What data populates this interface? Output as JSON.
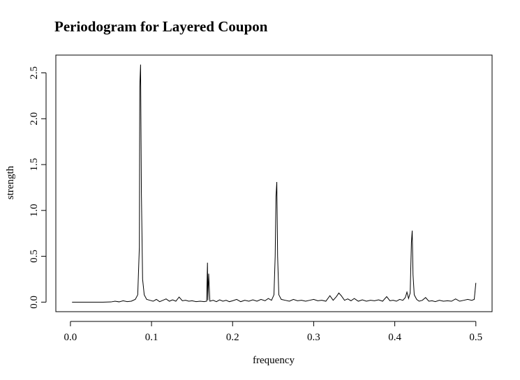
{
  "chart_data": {
    "type": "line",
    "title": "Periodogram for Layered Coupon",
    "x_label": "frequency",
    "y_label": "strength",
    "x": [
      0.002,
      0.01,
      0.02,
      0.03,
      0.04,
      0.05,
      0.055,
      0.06,
      0.065,
      0.07,
      0.075,
      0.08,
      0.083,
      0.085,
      0.0855,
      0.0865,
      0.0875,
      0.089,
      0.091,
      0.094,
      0.098,
      0.102,
      0.106,
      0.11,
      0.114,
      0.118,
      0.122,
      0.126,
      0.13,
      0.134,
      0.138,
      0.142,
      0.146,
      0.15,
      0.155,
      0.16,
      0.165,
      0.168,
      0.169,
      0.1695,
      0.1705,
      0.172,
      0.176,
      0.18,
      0.184,
      0.188,
      0.192,
      0.196,
      0.2,
      0.205,
      0.21,
      0.215,
      0.22,
      0.225,
      0.23,
      0.235,
      0.24,
      0.244,
      0.248,
      0.251,
      0.2525,
      0.2535,
      0.2545,
      0.2555,
      0.257,
      0.26,
      0.265,
      0.27,
      0.275,
      0.28,
      0.285,
      0.29,
      0.295,
      0.3,
      0.305,
      0.31,
      0.315,
      0.32,
      0.324,
      0.328,
      0.331,
      0.334,
      0.338,
      0.342,
      0.346,
      0.35,
      0.355,
      0.36,
      0.365,
      0.37,
      0.375,
      0.38,
      0.385,
      0.39,
      0.394,
      0.398,
      0.402,
      0.406,
      0.41,
      0.413,
      0.415,
      0.417,
      0.419,
      0.4205,
      0.4215,
      0.4225,
      0.424,
      0.427,
      0.43,
      0.434,
      0.438,
      0.442,
      0.446,
      0.45,
      0.455,
      0.46,
      0.465,
      0.47,
      0.475,
      0.48,
      0.485,
      0.49,
      0.495,
      0.498,
      0.5
    ],
    "series": [
      {
        "color": "#000000",
        "values": [
          0,
          0,
          0,
          0,
          0,
          0.002,
          0.01,
          0.003,
          0.015,
          0.005,
          0.01,
          0.03,
          0.08,
          0.6,
          2.35,
          2.59,
          1.2,
          0.25,
          0.08,
          0.03,
          0.02,
          0.01,
          0.03,
          0.005,
          0.02,
          0.035,
          0.01,
          0.025,
          0.01,
          0.055,
          0.015,
          0.02,
          0.01,
          0.015,
          0.005,
          0.01,
          0.005,
          0.01,
          0.43,
          0.02,
          0.31,
          0.01,
          0.02,
          0.005,
          0.025,
          0.01,
          0.02,
          0.005,
          0.015,
          0.03,
          0.005,
          0.02,
          0.01,
          0.025,
          0.01,
          0.03,
          0.015,
          0.04,
          0.02,
          0.08,
          0.5,
          1.15,
          1.31,
          0.5,
          0.08,
          0.03,
          0.02,
          0.01,
          0.03,
          0.015,
          0.02,
          0.01,
          0.02,
          0.03,
          0.015,
          0.02,
          0.01,
          0.07,
          0.02,
          0.06,
          0.1,
          0.07,
          0.02,
          0.035,
          0.015,
          0.04,
          0.01,
          0.025,
          0.01,
          0.02,
          0.015,
          0.025,
          0.01,
          0.06,
          0.015,
          0.02,
          0.01,
          0.03,
          0.02,
          0.05,
          0.11,
          0.04,
          0.1,
          0.65,
          0.78,
          0.3,
          0.08,
          0.03,
          0.01,
          0.02,
          0.05,
          0.01,
          0.015,
          0.005,
          0.02,
          0.01,
          0.015,
          0.01,
          0.035,
          0.01,
          0.02,
          0.03,
          0.02,
          0.03,
          0.21
        ]
      }
    ],
    "xlim": [
      -0.018,
      0.52
    ],
    "ylim": [
      -0.104,
      2.694
    ],
    "xticks": [
      {
        "value": 0,
        "label": "0.0"
      },
      0.1,
      0.2,
      0.3,
      0.4,
      0.5
    ],
    "yticks": [
      {
        "value": 0,
        "label": "0.0"
      },
      0.5,
      {
        "value": 1,
        "label": "1.0"
      },
      1.5,
      {
        "value": 2,
        "label": "2.0"
      },
      2.5
    ]
  }
}
